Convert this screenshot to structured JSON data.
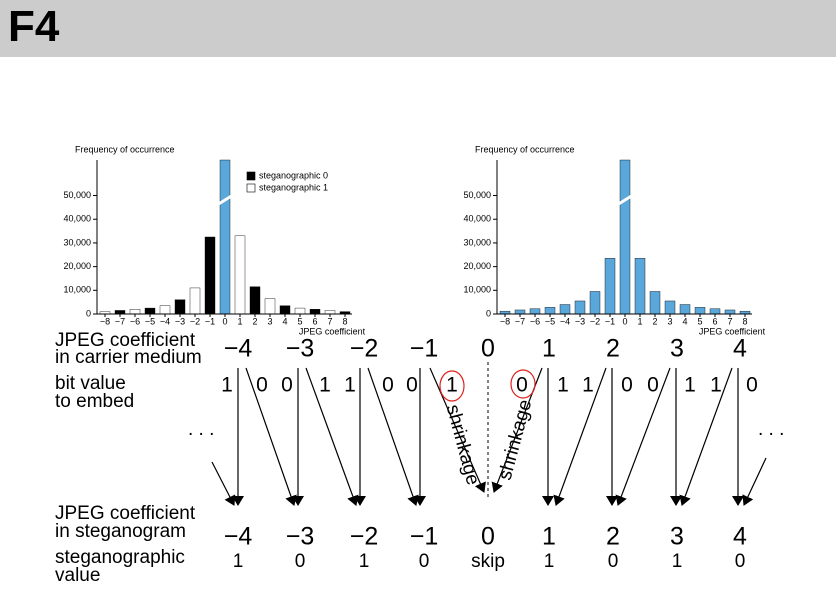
{
  "header": {
    "title": "F4"
  },
  "chart_data": [
    {
      "type": "bar",
      "y_label": "Frequency of occurrence",
      "x_label": "JPEG coefficient",
      "categories": [
        "−8",
        "−7",
        "−6",
        "−5",
        "−4",
        "−3",
        "−2",
        "−1",
        "0",
        "1",
        "2",
        "3",
        "4",
        "5",
        "6",
        "7",
        "8"
      ],
      "series": [
        {
          "name": "steganographic 0",
          "color": "#000000",
          "values": [
            null,
            1500,
            null,
            2500,
            null,
            6000,
            null,
            32500,
            null,
            null,
            11500,
            null,
            3500,
            null,
            2000,
            null,
            1000
          ]
        },
        {
          "name": "steganographic 1",
          "color": "#ffffff",
          "values": [
            1000,
            null,
            2000,
            null,
            3500,
            null,
            11000,
            null,
            null,
            33000,
            null,
            6500,
            null,
            2500,
            null,
            1500,
            null
          ]
        },
        {
          "color": "#5aa7dc",
          "values": [
            null,
            null,
            null,
            null,
            null,
            null,
            null,
            null,
            65000,
            null,
            null,
            null,
            null,
            null,
            null,
            null,
            null
          ]
        }
      ],
      "ylim": [
        0,
        65000
      ],
      "yticks": [
        0,
        {
          "value": 10000,
          "label": "10,000"
        },
        {
          "value": 20000,
          "label": "20,000"
        },
        {
          "value": 30000,
          "label": "30,000"
        },
        {
          "value": 40000,
          "label": "40,000"
        },
        {
          "value": 50000,
          "label": "50,000"
        }
      ],
      "axis_break": true,
      "legend": "top-right"
    },
    {
      "type": "bar",
      "y_label": "Frequency of occurrence",
      "x_label": "JPEG coefficient",
      "categories": [
        "−8",
        "−7",
        "−6",
        "−5",
        "−4",
        "−3",
        "−2",
        "−1",
        "0",
        "1",
        "2",
        "3",
        "4",
        "5",
        "6",
        "7",
        "8"
      ],
      "series": [
        {
          "color": "#5aa7dc",
          "values": [
            1200,
            1700,
            2200,
            2800,
            4000,
            5500,
            9500,
            23500,
            65000,
            23500,
            9500,
            5500,
            4000,
            2800,
            2200,
            1700,
            1200
          ]
        }
      ],
      "ylim": [
        0,
        65000
      ],
      "yticks": [
        0,
        {
          "value": 10000,
          "label": "10,000"
        },
        {
          "value": 20000,
          "label": "20,000"
        },
        {
          "value": 30000,
          "label": "30,000"
        },
        {
          "value": 40000,
          "label": "40,000"
        },
        {
          "value": 50000,
          "label": "50,000"
        }
      ],
      "axis_break": true
    }
  ],
  "diagram": {
    "carrier_label": [
      "JPEG coefficient",
      "in carrier medium"
    ],
    "bits_label": [
      "bit value",
      "to embed"
    ],
    "stego_label": [
      "JPEG coefficient",
      "in steganogram"
    ],
    "value_label": [
      "steganographic",
      "value"
    ],
    "carrier_coefficients": [
      "−4",
      "−3",
      "−2",
      "−1",
      "0",
      "1",
      "2",
      "3",
      "4"
    ],
    "bits": [
      1,
      0,
      0,
      1,
      1,
      0,
      0,
      1,
      0,
      1,
      1,
      0,
      0,
      1,
      1,
      0
    ],
    "ellipsis": ". . .",
    "shrinkage": "shrinkage",
    "stego_coefficients": [
      "−4",
      "−3",
      "−2",
      "−1",
      "0",
      "1",
      "2",
      "3",
      "4"
    ],
    "stego_values": [
      "1",
      "0",
      "1",
      "0",
      "skip",
      "1",
      "0",
      "1",
      "0"
    ]
  }
}
